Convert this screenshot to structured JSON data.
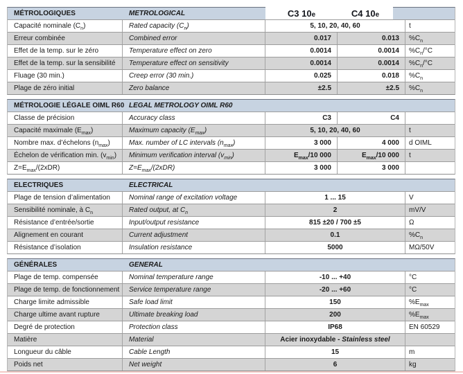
{
  "colors": {
    "section_header_bg": "#c7d3e1",
    "row_alt_bg": "#d5d5d5",
    "row_bg": "#ffffff",
    "section_top_border": "#6b7280",
    "row_divider": "#9c9c9c",
    "bottom_accent_line": "#f4c9c6",
    "text": "#1a1a1a"
  },
  "model_header": {
    "left": "C3 10`e`",
    "right": "C4 10`e`"
  },
  "sections": [
    {
      "title_fr": "MÉTROLOGIQUES",
      "title_en": "METROLOGICAL",
      "has_model_columns": true,
      "rows": [
        {
          "fr": "Capacité nominale (C~n~)",
          "en": "Rated capacity (C~n~)",
          "values": [
            "5, 10, 20, 40, 60"
          ],
          "unit": "t"
        },
        {
          "fr": "Erreur combinée",
          "en": "Combined error",
          "values": [
            "0.017",
            "0.013"
          ],
          "unit": "%C~n~"
        },
        {
          "fr": "Effet de la temp. sur le zéro",
          "en": "Temperature effect on zero",
          "values": [
            "0.0014",
            "0.0014"
          ],
          "unit": "%C~n~/°C"
        },
        {
          "fr": "Effet de la temp. sur la sensibilité",
          "en": "Temperature effect on sensitivity",
          "values": [
            "0.0014",
            "0.0014"
          ],
          "unit": "%C~n~/°C"
        },
        {
          "fr": "Fluage (30 min.)",
          "en": "Creep error (30 min.)",
          "values": [
            "0.025",
            "0.018"
          ],
          "unit": "%C~n~"
        },
        {
          "fr": "Plage de zéro initial",
          "en": "Zero balance",
          "values": [
            "±2.5",
            "±2.5"
          ],
          "unit": "%C~n~"
        }
      ]
    },
    {
      "title_fr": "MÉTROLOGIE LÉGALE OIML R60",
      "title_en": "LEGAL METROLOGY OIML R60",
      "has_model_columns": false,
      "rows": [
        {
          "fr": "Classe de précision",
          "en": "Accuracy class",
          "values": [
            "C3",
            "C4"
          ],
          "unit": ""
        },
        {
          "fr": "Capacité maximale (E~max~)",
          "en": "Maximum capacity (E~max~)",
          "values": [
            "5, 10, 20, 40, 60"
          ],
          "unit": "t"
        },
        {
          "fr": "Nombre max. d’échelons (n~max~)",
          "en": "Max. number of LC intervals (n~max~)",
          "values": [
            "3 000",
            "4 000"
          ],
          "unit": "d OIML"
        },
        {
          "fr": "Échelon de vérification min. (v~min~)",
          "en": "Minimum verification interval (v~min~)",
          "values": [
            "E~max~/10 000",
            "E~max~/10 000"
          ],
          "unit": "t"
        },
        {
          "fr": "Z=E~max~/(2xDR)",
          "en": "Z=E~max~/(2xDR)",
          "values": [
            "3 000",
            "3 000"
          ],
          "unit": ""
        }
      ]
    },
    {
      "title_fr": "ELECTRIQUES",
      "title_en": "ELECTRICAL",
      "has_model_columns": false,
      "rows": [
        {
          "fr": "Plage de tension d’alimentation",
          "en": "Nominal range of excitation voltage",
          "values": [
            "1 ... 15"
          ],
          "unit": "V"
        },
        {
          "fr": "Sensibilité nominale, à C~n~",
          "en": "Rated output, at C~n~",
          "values": [
            "2"
          ],
          "unit": "mV/V"
        },
        {
          "fr": "Résistance d’entrée/sortie",
          "en": "Input/output resistance",
          "values": [
            "815 ±20 / 700 ±5"
          ],
          "unit": "Ω"
        },
        {
          "fr": "Alignement en courant",
          "en": "Current adjustment",
          "values": [
            "0.1"
          ],
          "unit": "%C~n~"
        },
        {
          "fr": "Résistance d’isolation",
          "en": "Insulation resistance",
          "values": [
            "5000"
          ],
          "unit": "MΩ/50V"
        }
      ]
    },
    {
      "title_fr": "GÉNÉRALES",
      "title_en": "GENERAL",
      "has_model_columns": false,
      "rows": [
        {
          "fr": "Plage de temp. compensée",
          "en": "Nominal temperature range",
          "values": [
            "-10 ... +40"
          ],
          "unit": "°C"
        },
        {
          "fr": "Plage de temp. de fonctionnement",
          "en": "Service temperature range",
          "values": [
            "-20 ... +60"
          ],
          "unit": "°C"
        },
        {
          "fr": "Charge limite admissible",
          "en": "Safe load limit",
          "values": [
            "150"
          ],
          "unit": "%E~max~"
        },
        {
          "fr": "Charge ultime avant rupture",
          "en": "Ultimate breaking load",
          "values": [
            "200"
          ],
          "unit": "%E~max~"
        },
        {
          "fr": "Degré de protection",
          "en": "Protection class",
          "values": [
            "IP68"
          ],
          "unit": "EN 60529"
        },
        {
          "fr": "Matière",
          "en": "Material",
          "values": [
            "Acier inoxydable - *Stainless steel*"
          ],
          "unit": ""
        },
        {
          "fr": "Longueur du câble",
          "en": "Cable Length",
          "values": [
            "15"
          ],
          "unit": "m"
        },
        {
          "fr": "Poids net",
          "en": "Net weight",
          "values": [
            "6"
          ],
          "unit": "kg"
        }
      ]
    }
  ]
}
